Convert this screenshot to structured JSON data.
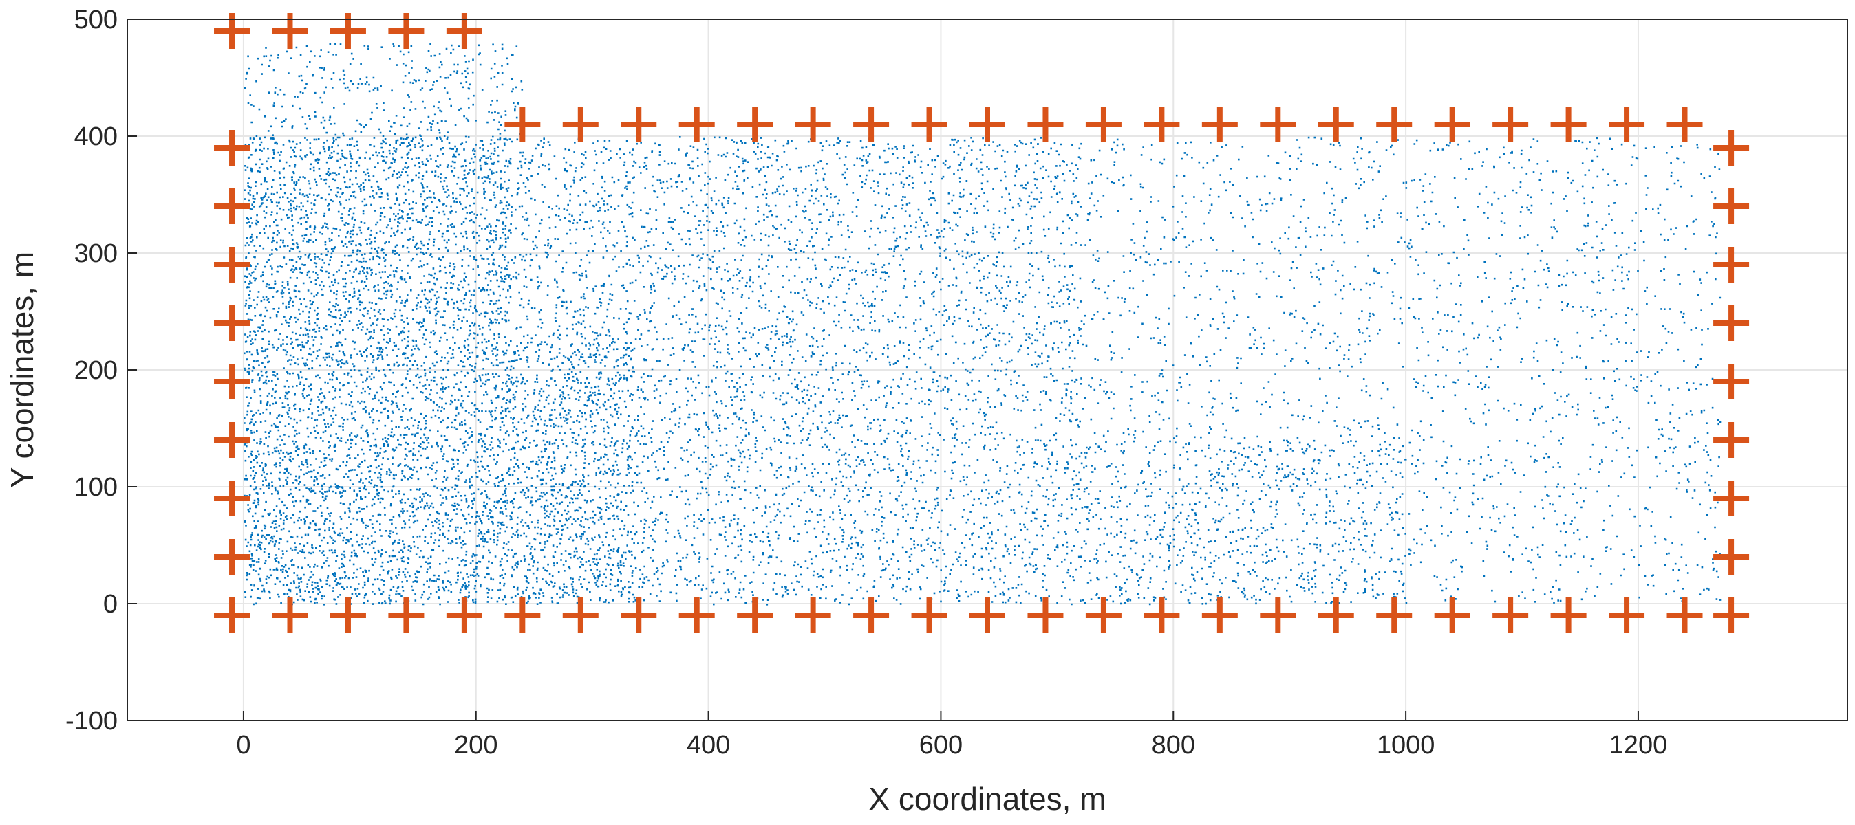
{
  "chart_data": {
    "type": "scatter",
    "title": "",
    "xlabel": "X coordinates, m",
    "ylabel": "Y coordinates, m",
    "xlim": [
      -100,
      1380
    ],
    "ylim": [
      -100,
      500
    ],
    "xticks": [
      0,
      200,
      400,
      600,
      800,
      1000,
      1200
    ],
    "yticks": [
      -100,
      0,
      100,
      200,
      300,
      400,
      500
    ],
    "grid": true,
    "legend": "none",
    "colors": {
      "points": "#0072BD",
      "markers": "#D95319",
      "grid": "#e6e6e6",
      "axis": "#262626"
    },
    "series": [
      {
        "marker": "dot",
        "density_regions": [
          {
            "x": [
              0,
              240
            ],
            "y": [
              400,
              480
            ],
            "relative_density": 0.35
          },
          {
            "x": [
              0,
              230
            ],
            "y": [
              0,
              400
            ],
            "relative_density": 1.0
          },
          {
            "x": [
              230,
              335
            ],
            "y": [
              0,
              225
            ],
            "relative_density": 1.0
          },
          {
            "x": [
              230,
              720
            ],
            "y": [
              225,
              400
            ],
            "relative_density": 0.45
          },
          {
            "x": [
              335,
              720
            ],
            "y": [
              0,
              225
            ],
            "relative_density": 0.45
          },
          {
            "x": [
              720,
              1000
            ],
            "y": [
              0,
              140
            ],
            "relative_density": 0.45
          },
          {
            "x": [
              720,
              1270
            ],
            "y": [
              140,
              400
            ],
            "relative_density": 0.18
          },
          {
            "x": [
              1000,
              1270
            ],
            "y": [
              0,
              140
            ],
            "relative_density": 0.18
          }
        ]
      },
      {
        "marker": "plus",
        "points": [
          [
            -10,
            490
          ],
          [
            40,
            490
          ],
          [
            90,
            490
          ],
          [
            140,
            490
          ],
          [
            190,
            490
          ],
          [
            -10,
            390
          ],
          [
            -10,
            340
          ],
          [
            -10,
            290
          ],
          [
            -10,
            240
          ],
          [
            -10,
            190
          ],
          [
            -10,
            140
          ],
          [
            -10,
            90
          ],
          [
            -10,
            40
          ],
          [
            -10,
            -10
          ],
          [
            240,
            410
          ],
          [
            290,
            410
          ],
          [
            340,
            410
          ],
          [
            390,
            410
          ],
          [
            440,
            410
          ],
          [
            490,
            410
          ],
          [
            540,
            410
          ],
          [
            590,
            410
          ],
          [
            640,
            410
          ],
          [
            690,
            410
          ],
          [
            740,
            410
          ],
          [
            790,
            410
          ],
          [
            840,
            410
          ],
          [
            890,
            410
          ],
          [
            940,
            410
          ],
          [
            990,
            410
          ],
          [
            1040,
            410
          ],
          [
            1090,
            410
          ],
          [
            1140,
            410
          ],
          [
            1190,
            410
          ],
          [
            1240,
            410
          ],
          [
            1280,
            390
          ],
          [
            1280,
            340
          ],
          [
            1280,
            290
          ],
          [
            1280,
            240
          ],
          [
            1280,
            190
          ],
          [
            1280,
            140
          ],
          [
            1280,
            90
          ],
          [
            1280,
            40
          ],
          [
            1280,
            -10
          ],
          [
            40,
            -10
          ],
          [
            90,
            -10
          ],
          [
            140,
            -10
          ],
          [
            190,
            -10
          ],
          [
            240,
            -10
          ],
          [
            290,
            -10
          ],
          [
            340,
            -10
          ],
          [
            390,
            -10
          ],
          [
            440,
            -10
          ],
          [
            490,
            -10
          ],
          [
            540,
            -10
          ],
          [
            590,
            -10
          ],
          [
            640,
            -10
          ],
          [
            690,
            -10
          ],
          [
            740,
            -10
          ],
          [
            790,
            -10
          ],
          [
            840,
            -10
          ],
          [
            890,
            -10
          ],
          [
            940,
            -10
          ],
          [
            990,
            -10
          ],
          [
            1040,
            -10
          ],
          [
            1090,
            -10
          ],
          [
            1140,
            -10
          ],
          [
            1190,
            -10
          ],
          [
            1240,
            -10
          ]
        ]
      }
    ]
  }
}
